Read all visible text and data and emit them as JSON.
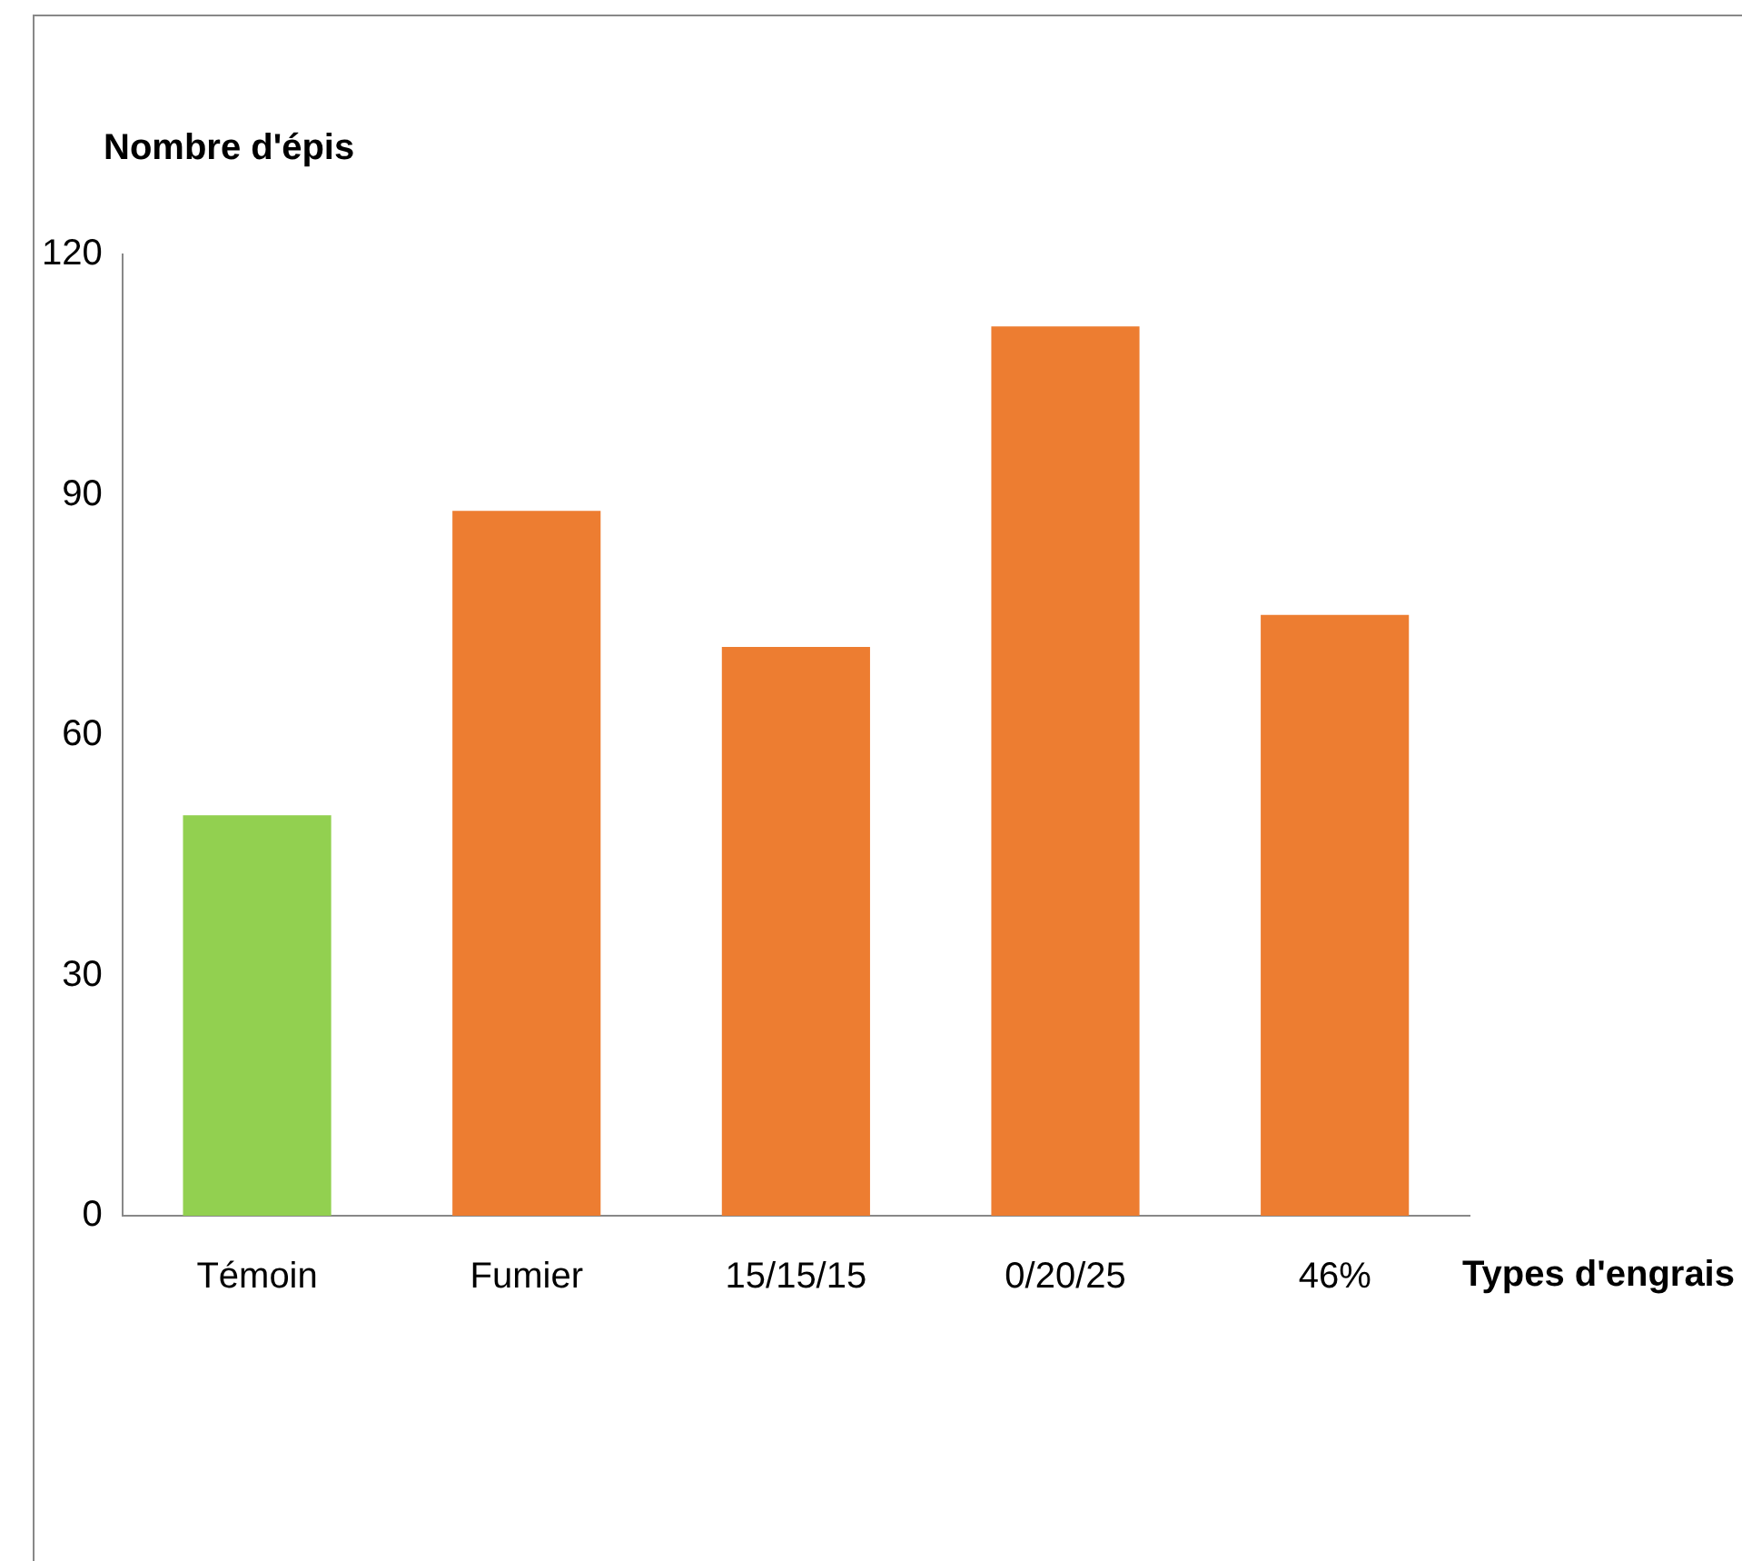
{
  "chart_data": {
    "type": "bar",
    "xlabel": "Types d'engrais",
    "ylabel": "Nombre d'épis",
    "categories": [
      "Témoin",
      "Fumier",
      "15/15/15",
      "0/20/25",
      "46%"
    ],
    "values": [
      50,
      88,
      71,
      111,
      75
    ],
    "colors": [
      "#92d050",
      "#ed7d31",
      "#ed7d31",
      "#ed7d31",
      "#ed7d31"
    ],
    "ylim": [
      0,
      120
    ],
    "yticks": [
      0,
      30,
      60,
      90,
      120
    ],
    "grid": false,
    "legend": false
  }
}
